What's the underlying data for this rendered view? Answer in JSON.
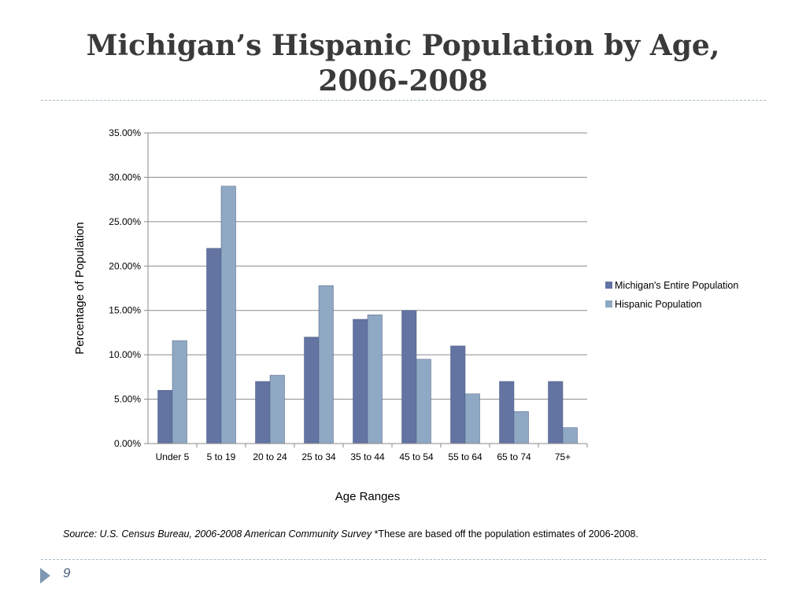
{
  "slide": {
    "title_line1": "Michigan’s Hispanic Population by Age,",
    "title_line2": "2006-2008",
    "source": "Source: U.S. Census Bureau, 2006-2008 American Community Survey",
    "note": " *These are based off the population estimates of 2006-2008.",
    "page_number": "9",
    "nav_icon": "triangle-arrow-icon"
  },
  "chart_data": {
    "type": "bar",
    "title": "",
    "xlabel": "Age Ranges",
    "ylabel": "Percentage of Population",
    "categories": [
      "Under 5",
      "5 to 19",
      "20 to 24",
      "25 to 34",
      "35 to 44",
      "45 to 54",
      "55 to 64",
      "65 to 74",
      "75+"
    ],
    "series": [
      {
        "name": "Michigan's Entire Population",
        "color": "#6374a3",
        "values": [
          6,
          22,
          7,
          12,
          14,
          15,
          11,
          7,
          7
        ]
      },
      {
        "name": "Hispanic Population",
        "color": "#8fa9c4",
        "values": [
          11.6,
          29,
          7.7,
          17.8,
          14.5,
          9.5,
          5.6,
          3.6,
          1.8
        ]
      }
    ],
    "ylim": [
      0,
      35
    ],
    "yticks": [
      0,
      5,
      10,
      15,
      20,
      25,
      30,
      35
    ],
    "ytick_labels": [
      "0.00%",
      "5.00%",
      "10.00%",
      "15.00%",
      "20.00%",
      "25.00%",
      "30.00%",
      "35.00%"
    ],
    "grid": true,
    "legend_position": "right"
  }
}
